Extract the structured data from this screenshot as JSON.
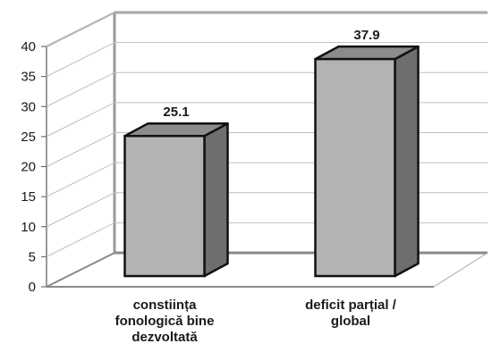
{
  "chart_data": {
    "type": "bar",
    "style": "3d",
    "categories": [
      [
        "constiința",
        "fonologică bine",
        "dezvoltată"
      ],
      [
        "deficit parțial /",
        "global"
      ]
    ],
    "values": [
      25.1,
      37.9
    ],
    "data_labels": [
      "25.1",
      "37.9"
    ],
    "ylim": [
      0,
      40
    ],
    "y_ticks": [
      0,
      5,
      10,
      15,
      20,
      25,
      30,
      35,
      40
    ],
    "grid": true,
    "legend": "none",
    "title": "",
    "xlabel": "",
    "ylabel": "",
    "colors": {
      "bar_front": "#b3b3b3",
      "bar_top": "#8c8c8c",
      "bar_side": "#6e6e6e",
      "bar_outline": "#111111",
      "gridline": "#bfbfbf",
      "wall": "#9a9a9a",
      "floor": "#8a8a8a"
    }
  }
}
